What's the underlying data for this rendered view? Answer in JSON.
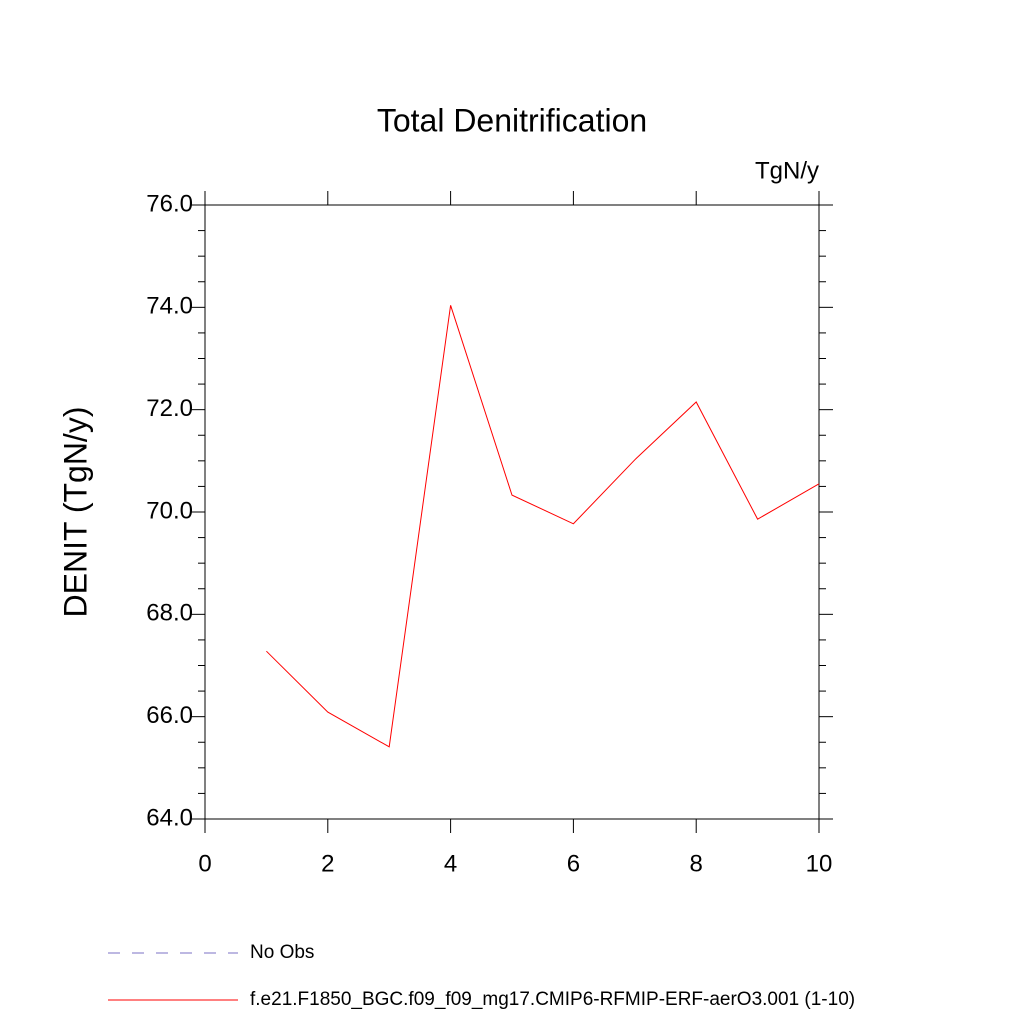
{
  "chart_data": {
    "type": "line",
    "title": "Total Denitrification",
    "units": "TgN/y",
    "y_label": "DENIT  (TgN/y)",
    "x": [
      1,
      2,
      3,
      4,
      5,
      6,
      7,
      8,
      9,
      10
    ],
    "series": [
      {
        "name": "No Obs",
        "color": "#7b72c4",
        "dashed": true,
        "values": [
          null,
          null,
          null,
          null,
          null,
          null,
          null,
          null,
          null,
          null
        ]
      },
      {
        "name": "f.e21.F1850_BGC.f09_f09_mg17.CMIP6-RFMIP-ERF-aerO3.001 (1-10)",
        "color": "#ff0000",
        "dashed": false,
        "values": [
          67.28,
          66.09,
          65.41,
          74.04,
          70.33,
          69.77,
          71.02,
          72.15,
          69.86,
          70.55
        ]
      }
    ],
    "xlim": [
      0,
      10
    ],
    "xticks": [
      0,
      2,
      4,
      6,
      8,
      10
    ],
    "ylim": [
      64,
      76
    ],
    "yticks": [
      {
        "value": 64,
        "label": "64.0"
      },
      {
        "value": 66,
        "label": "66.0"
      },
      {
        "value": 68,
        "label": "68.0"
      },
      {
        "value": 70,
        "label": "70.0"
      },
      {
        "value": 72,
        "label": "72.0"
      },
      {
        "value": 74,
        "label": "74.0"
      },
      {
        "value": 76,
        "label": "76.0"
      }
    ]
  }
}
